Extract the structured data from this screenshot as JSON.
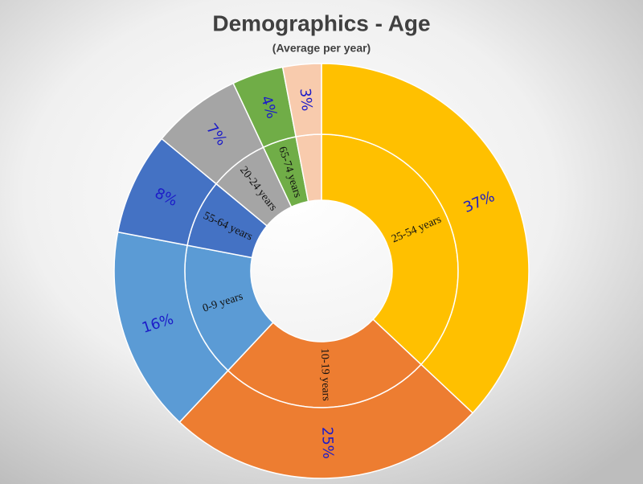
{
  "chart_data": {
    "type": "sunburst",
    "title": "Demographics - Age",
    "subtitle": "(Average per year)",
    "categories": [
      "25-54 years",
      "10-19 years",
      "0-9 years",
      "55-64 years",
      "20-24 years",
      "65-74 years",
      null
    ],
    "values": [
      37,
      25,
      16,
      8,
      7,
      4,
      3
    ],
    "value_labels": [
      "37%",
      "25%",
      "16%",
      "8%",
      "7%",
      "4%",
      "3%"
    ],
    "colors": [
      "#ffc000",
      "#ed7d31",
      "#5b9bd5",
      "#4472c4",
      "#a5a5a5",
      "#70ad47",
      "#f8cbad"
    ]
  }
}
